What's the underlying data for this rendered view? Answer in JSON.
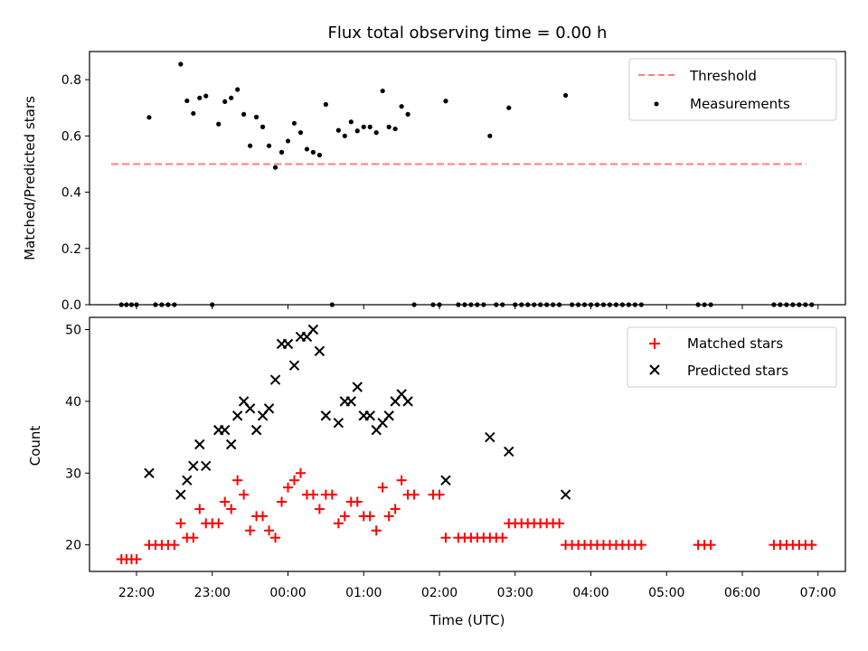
{
  "title": "Flux total observing time = 0.00 h",
  "xlabel": "Time (UTC)",
  "x_ticks": [
    "22:00",
    "23:00",
    "00:00",
    "01:00",
    "02:00",
    "03:00",
    "04:00",
    "05:00",
    "06:00",
    "07:00"
  ],
  "colors": {
    "threshold": "#ff7f7f",
    "measurement": "#000000",
    "matched": "#ff0000",
    "predicted": "#000000"
  },
  "chart_data": [
    {
      "type": "scatter",
      "ylabel": "Matched/Predicted stars",
      "ylim": [
        0,
        0.9
      ],
      "y_ticks": [
        "0.0",
        "0.2",
        "0.4",
        "0.6",
        "0.8"
      ],
      "legend": {
        "placement": "top-right",
        "entries": [
          "Threshold",
          "Measurements"
        ]
      },
      "threshold": {
        "name": "Threshold",
        "y": 0.5,
        "x_start": "21:50",
        "x_end": "06:55"
      },
      "series": [
        {
          "name": "Measurements",
          "points": [
            [
              "21:48",
              0.0
            ],
            [
              "21:52",
              0.0
            ],
            [
              "21:56",
              0.0
            ],
            [
              "22:00",
              0.0
            ],
            [
              "22:10",
              0.666
            ],
            [
              "22:15",
              0.0
            ],
            [
              "22:20",
              0.0
            ],
            [
              "22:25",
              0.0
            ],
            [
              "22:30",
              0.0
            ],
            [
              "22:35",
              0.855
            ],
            [
              "22:40",
              0.725
            ],
            [
              "22:45",
              0.68
            ],
            [
              "22:50",
              0.735
            ],
            [
              "22:55",
              0.742
            ],
            [
              "23:00",
              0.0
            ],
            [
              "23:05",
              0.642
            ],
            [
              "23:10",
              0.722
            ],
            [
              "23:15",
              0.735
            ],
            [
              "23:20",
              0.765
            ],
            [
              "23:25",
              0.677
            ],
            [
              "23:30",
              0.565
            ],
            [
              "23:35",
              0.667
            ],
            [
              "23:40",
              0.632
            ],
            [
              "23:45",
              0.565
            ],
            [
              "23:50",
              0.488
            ],
            [
              "23:55",
              0.542
            ],
            [
              "00:00",
              0.582
            ],
            [
              "00:05",
              0.645
            ],
            [
              "00:10",
              0.612
            ],
            [
              "00:15",
              0.553
            ],
            [
              "00:20",
              0.542
            ],
            [
              "00:25",
              0.532
            ],
            [
              "00:30",
              0.712
            ],
            [
              "00:35",
              0.0
            ],
            [
              "00:40",
              0.62
            ],
            [
              "00:45",
              0.6
            ],
            [
              "00:50",
              0.65
            ],
            [
              "00:55",
              0.618
            ],
            [
              "01:00",
              0.632
            ],
            [
              "01:05",
              0.632
            ],
            [
              "01:10",
              0.612
            ],
            [
              "01:15",
              0.76
            ],
            [
              "01:20",
              0.632
            ],
            [
              "01:25",
              0.625
            ],
            [
              "01:30",
              0.705
            ],
            [
              "01:35",
              0.677
            ],
            [
              "01:40",
              0.0
            ],
            [
              "01:55",
              0.0
            ],
            [
              "02:00",
              0.0
            ],
            [
              "02:05",
              0.724
            ],
            [
              "02:15",
              0.0
            ],
            [
              "02:20",
              0.0
            ],
            [
              "02:25",
              0.0
            ],
            [
              "02:30",
              0.0
            ],
            [
              "02:35",
              0.0
            ],
            [
              "02:40",
              0.6
            ],
            [
              "02:45",
              0.0
            ],
            [
              "02:50",
              0.0
            ],
            [
              "02:55",
              0.7
            ],
            [
              "03:00",
              0.0
            ],
            [
              "03:05",
              0.0
            ],
            [
              "03:10",
              0.0
            ],
            [
              "03:15",
              0.0
            ],
            [
              "03:20",
              0.0
            ],
            [
              "03:25",
              0.0
            ],
            [
              "03:30",
              0.0
            ],
            [
              "03:35",
              0.0
            ],
            [
              "03:40",
              0.744
            ],
            [
              "03:45",
              0.0
            ],
            [
              "03:50",
              0.0
            ],
            [
              "03:55",
              0.0
            ],
            [
              "04:00",
              0.0
            ],
            [
              "04:05",
              0.0
            ],
            [
              "04:10",
              0.0
            ],
            [
              "04:15",
              0.0
            ],
            [
              "04:20",
              0.0
            ],
            [
              "04:25",
              0.0
            ],
            [
              "04:30",
              0.0
            ],
            [
              "04:35",
              0.0
            ],
            [
              "04:40",
              0.0
            ],
            [
              "05:25",
              0.0
            ],
            [
              "05:30",
              0.0
            ],
            [
              "05:35",
              0.0
            ],
            [
              "06:25",
              0.0
            ],
            [
              "06:30",
              0.0
            ],
            [
              "06:35",
              0.0
            ],
            [
              "06:40",
              0.0
            ],
            [
              "06:45",
              0.0
            ],
            [
              "06:50",
              0.0
            ],
            [
              "06:55",
              0.0
            ]
          ]
        }
      ]
    },
    {
      "type": "scatter",
      "ylabel": "Count",
      "ylim": [
        16.3,
        51.7
      ],
      "y_ticks": [
        "20",
        "30",
        "40",
        "50"
      ],
      "legend": {
        "placement": "top-right",
        "entries": [
          "Matched stars",
          "Predicted stars"
        ]
      },
      "series": [
        {
          "name": "Matched stars",
          "marker": "+",
          "points": [
            [
              "21:48",
              18
            ],
            [
              "21:52",
              18
            ],
            [
              "21:56",
              18
            ],
            [
              "22:00",
              18
            ],
            [
              "22:10",
              20
            ],
            [
              "22:15",
              20
            ],
            [
              "22:20",
              20
            ],
            [
              "22:25",
              20
            ],
            [
              "22:30",
              20
            ],
            [
              "22:35",
              23
            ],
            [
              "22:40",
              21
            ],
            [
              "22:45",
              21
            ],
            [
              "22:50",
              25
            ],
            [
              "22:55",
              23
            ],
            [
              "23:00",
              23
            ],
            [
              "23:05",
              23
            ],
            [
              "23:10",
              26
            ],
            [
              "23:15",
              25
            ],
            [
              "23:20",
              29
            ],
            [
              "23:25",
              27
            ],
            [
              "23:30",
              22
            ],
            [
              "23:35",
              24
            ],
            [
              "23:40",
              24
            ],
            [
              "23:45",
              22
            ],
            [
              "23:50",
              21
            ],
            [
              "23:55",
              26
            ],
            [
              "00:00",
              28
            ],
            [
              "00:05",
              29
            ],
            [
              "00:10",
              30
            ],
            [
              "00:15",
              27
            ],
            [
              "00:20",
              27
            ],
            [
              "00:25",
              25
            ],
            [
              "00:30",
              27
            ],
            [
              "00:35",
              27
            ],
            [
              "00:40",
              23
            ],
            [
              "00:45",
              24
            ],
            [
              "00:50",
              26
            ],
            [
              "00:55",
              26
            ],
            [
              "01:00",
              24
            ],
            [
              "01:05",
              24
            ],
            [
              "01:10",
              22
            ],
            [
              "01:15",
              28
            ],
            [
              "01:20",
              24
            ],
            [
              "01:25",
              25
            ],
            [
              "01:30",
              29
            ],
            [
              "01:35",
              27
            ],
            [
              "01:40",
              27
            ],
            [
              "01:55",
              27
            ],
            [
              "02:00",
              27
            ],
            [
              "02:05",
              21
            ],
            [
              "02:15",
              21
            ],
            [
              "02:20",
              21
            ],
            [
              "02:25",
              21
            ],
            [
              "02:30",
              21
            ],
            [
              "02:35",
              21
            ],
            [
              "02:40",
              21
            ],
            [
              "02:45",
              21
            ],
            [
              "02:50",
              21
            ],
            [
              "02:55",
              23
            ],
            [
              "03:00",
              23
            ],
            [
              "03:05",
              23
            ],
            [
              "03:10",
              23
            ],
            [
              "03:15",
              23
            ],
            [
              "03:20",
              23
            ],
            [
              "03:25",
              23
            ],
            [
              "03:30",
              23
            ],
            [
              "03:35",
              23
            ],
            [
              "03:40",
              20
            ],
            [
              "03:45",
              20
            ],
            [
              "03:50",
              20
            ],
            [
              "03:55",
              20
            ],
            [
              "04:00",
              20
            ],
            [
              "04:05",
              20
            ],
            [
              "04:10",
              20
            ],
            [
              "04:15",
              20
            ],
            [
              "04:20",
              20
            ],
            [
              "04:25",
              20
            ],
            [
              "04:30",
              20
            ],
            [
              "04:35",
              20
            ],
            [
              "04:40",
              20
            ],
            [
              "05:25",
              20
            ],
            [
              "05:30",
              20
            ],
            [
              "05:35",
              20
            ],
            [
              "06:25",
              20
            ],
            [
              "06:30",
              20
            ],
            [
              "06:35",
              20
            ],
            [
              "06:40",
              20
            ],
            [
              "06:45",
              20
            ],
            [
              "06:50",
              20
            ],
            [
              "06:55",
              20
            ]
          ]
        },
        {
          "name": "Predicted stars",
          "marker": "x",
          "points": [
            [
              "22:10",
              30
            ],
            [
              "22:35",
              27
            ],
            [
              "22:40",
              29
            ],
            [
              "22:45",
              31
            ],
            [
              "22:50",
              34
            ],
            [
              "22:55",
              31
            ],
            [
              "23:05",
              36
            ],
            [
              "23:10",
              36
            ],
            [
              "23:15",
              34
            ],
            [
              "23:20",
              38
            ],
            [
              "23:25",
              40
            ],
            [
              "23:30",
              39
            ],
            [
              "23:35",
              36
            ],
            [
              "23:40",
              38
            ],
            [
              "23:45",
              39
            ],
            [
              "23:50",
              43
            ],
            [
              "23:55",
              48
            ],
            [
              "00:00",
              48
            ],
            [
              "00:05",
              45
            ],
            [
              "00:10",
              49
            ],
            [
              "00:15",
              49
            ],
            [
              "00:20",
              50
            ],
            [
              "00:25",
              47
            ],
            [
              "00:30",
              38
            ],
            [
              "00:40",
              37
            ],
            [
              "00:45",
              40
            ],
            [
              "00:50",
              40
            ],
            [
              "00:55",
              42
            ],
            [
              "01:00",
              38
            ],
            [
              "01:05",
              38
            ],
            [
              "01:10",
              36
            ],
            [
              "01:15",
              37
            ],
            [
              "01:20",
              38
            ],
            [
              "01:25",
              40
            ],
            [
              "01:30",
              41
            ],
            [
              "01:35",
              40
            ],
            [
              "02:05",
              29
            ],
            [
              "02:40",
              35
            ],
            [
              "02:55",
              33
            ],
            [
              "03:40",
              27
            ]
          ]
        }
      ]
    }
  ]
}
